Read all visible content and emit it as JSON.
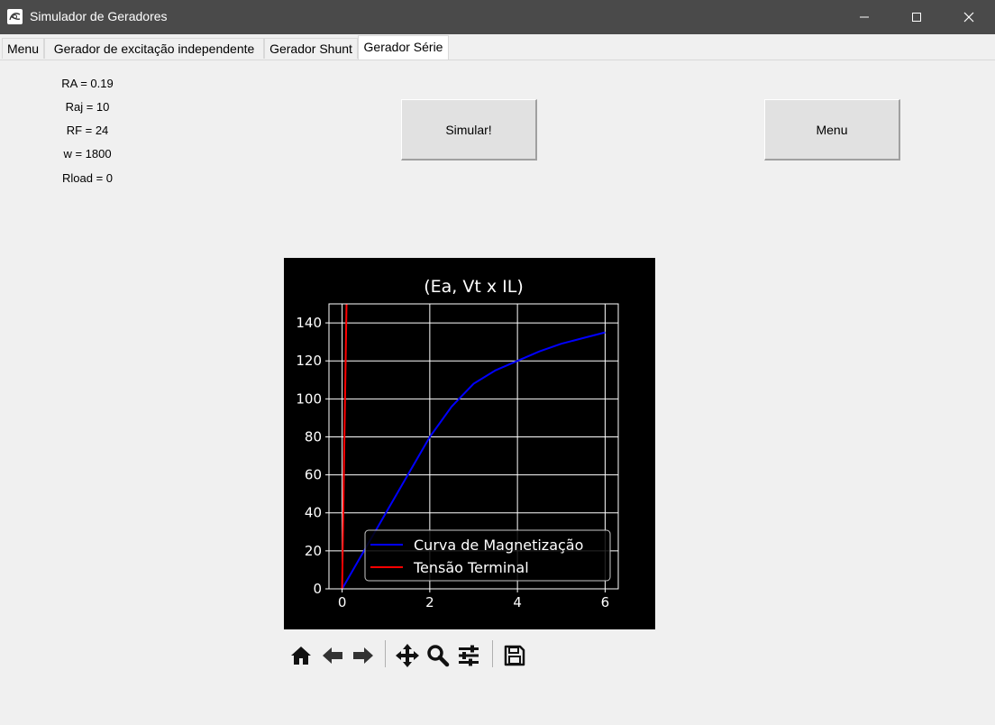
{
  "window": {
    "title": "Simulador de Geradores"
  },
  "tabs": [
    {
      "label": "Menu"
    },
    {
      "label": "Gerador de excitação independente"
    },
    {
      "label": "Gerador Shunt"
    },
    {
      "label": "Gerador Série",
      "active": true
    }
  ],
  "params": [
    {
      "text": "RA = 0.19"
    },
    {
      "text": "Raj = 10"
    },
    {
      "text": "RF = 24"
    },
    {
      "text": "w = 1800"
    },
    {
      "text": "Rload = 0"
    }
  ],
  "buttons": {
    "simulate": "Simular!",
    "menu": "Menu"
  },
  "toolbar": {
    "icons": [
      "home-icon",
      "back-arrow-icon",
      "forward-arrow-icon",
      "pan-icon",
      "zoom-icon",
      "configure-subplots-icon",
      "save-icon"
    ]
  },
  "chart_data": {
    "type": "line",
    "title": "(Ea, Vt x IL)",
    "xlabel": "",
    "ylabel": "",
    "xlim": [
      -0.3,
      6.3
    ],
    "ylim": [
      0,
      150
    ],
    "xticks": [
      0,
      2,
      4,
      6
    ],
    "yticks": [
      0,
      20,
      40,
      60,
      80,
      100,
      120,
      140
    ],
    "grid": true,
    "background": "#000000",
    "legend_position": "lower-right",
    "series": [
      {
        "name": "Curva de  Magnetização",
        "color": "#0000ff",
        "x": [
          0,
          0.5,
          1.0,
          1.5,
          2.0,
          2.5,
          3.0,
          3.5,
          4.0,
          4.5,
          5.0,
          5.5,
          6.0
        ],
        "y": [
          0,
          20,
          40,
          60,
          80,
          96,
          108,
          115,
          120,
          125,
          129,
          132,
          135
        ]
      },
      {
        "name": "Tensão Terminal",
        "color": "#ff0000",
        "x": [
          0,
          0.05,
          0.1
        ],
        "y": [
          0,
          75,
          150
        ]
      }
    ]
  }
}
